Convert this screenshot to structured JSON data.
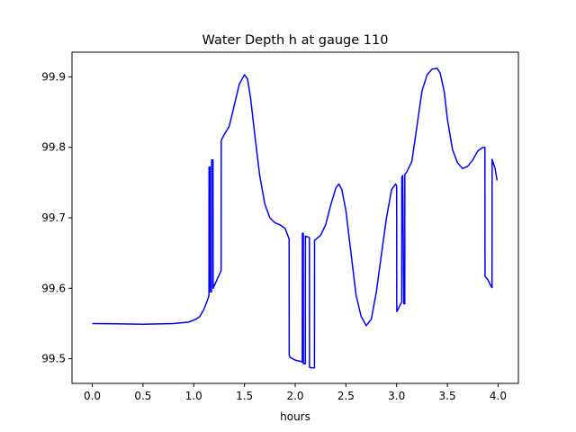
{
  "chart_data": {
    "type": "line",
    "title": "Water Depth h at gauge 110",
    "xlabel": "hours",
    "ylabel": "",
    "xlim": [
      -0.2,
      4.2
    ],
    "ylim": [
      99.465,
      99.935
    ],
    "x_ticks": [
      0.0,
      0.5,
      1.0,
      1.5,
      2.0,
      2.5,
      3.0,
      3.5,
      4.0
    ],
    "x_tick_labels": [
      "0.0",
      "0.5",
      "1.0",
      "1.5",
      "2.0",
      "2.5",
      "3.0",
      "3.5",
      "4.0"
    ],
    "y_ticks": [
      99.5,
      99.6,
      99.7,
      99.8,
      99.9
    ],
    "y_tick_labels": [
      "99.5",
      "99.6",
      "99.7",
      "99.8",
      "99.9"
    ],
    "grid": false,
    "legend": "none",
    "series": [
      {
        "color": "#0000ff",
        "x": [
          0.0,
          0.5,
          0.8,
          0.95,
          1.02,
          1.06,
          1.1,
          1.14,
          1.15,
          1.151,
          1.16,
          1.161,
          1.175,
          1.176,
          1.19,
          1.191,
          1.2,
          1.27,
          1.271,
          1.3,
          1.35,
          1.4,
          1.45,
          1.5,
          1.53,
          1.56,
          1.6,
          1.65,
          1.7,
          1.75,
          1.8,
          1.85,
          1.9,
          1.94,
          1.941,
          1.95,
          2.0,
          2.06,
          2.07,
          2.071,
          2.08,
          2.081,
          2.1,
          2.101,
          2.14,
          2.141,
          2.16,
          2.19,
          2.191,
          2.25,
          2.3,
          2.35,
          2.4,
          2.43,
          2.46,
          2.5,
          2.55,
          2.6,
          2.65,
          2.7,
          2.75,
          2.8,
          2.85,
          2.9,
          2.95,
          2.99,
          3.0,
          3.001,
          3.02,
          3.04,
          3.05,
          3.051,
          3.06,
          3.07,
          3.071,
          3.08,
          3.081,
          3.1,
          3.15,
          3.2,
          3.25,
          3.3,
          3.35,
          3.4,
          3.43,
          3.47,
          3.5,
          3.55,
          3.6,
          3.65,
          3.7,
          3.75,
          3.8,
          3.85,
          3.87,
          3.871,
          3.9,
          3.93,
          3.94,
          3.941,
          3.97,
          3.99
        ],
        "y": [
          99.55,
          99.549,
          99.55,
          99.552,
          99.556,
          99.56,
          99.57,
          99.585,
          99.59,
          99.772,
          99.772,
          99.595,
          99.595,
          99.782,
          99.782,
          99.6,
          99.603,
          99.625,
          99.81,
          99.818,
          99.83,
          99.86,
          99.89,
          99.903,
          99.897,
          99.87,
          99.82,
          99.76,
          99.72,
          99.7,
          99.693,
          99.69,
          99.685,
          99.67,
          99.505,
          99.502,
          99.498,
          99.496,
          99.495,
          99.678,
          99.678,
          99.493,
          99.493,
          99.674,
          99.672,
          99.488,
          99.487,
          99.487,
          99.668,
          99.675,
          99.69,
          99.718,
          99.742,
          99.748,
          99.74,
          99.71,
          99.65,
          99.59,
          99.56,
          99.547,
          99.556,
          99.595,
          99.648,
          99.7,
          99.74,
          99.748,
          99.745,
          99.567,
          99.572,
          99.578,
          99.58,
          99.758,
          99.76,
          99.58,
          99.578,
          99.578,
          99.762,
          99.765,
          99.78,
          99.83,
          99.88,
          99.903,
          99.911,
          99.912,
          99.905,
          99.878,
          99.84,
          99.797,
          99.778,
          99.77,
          99.773,
          99.782,
          99.795,
          99.8,
          99.8,
          99.617,
          99.612,
          99.603,
          99.601,
          99.783,
          99.77,
          99.753
        ]
      }
    ]
  }
}
